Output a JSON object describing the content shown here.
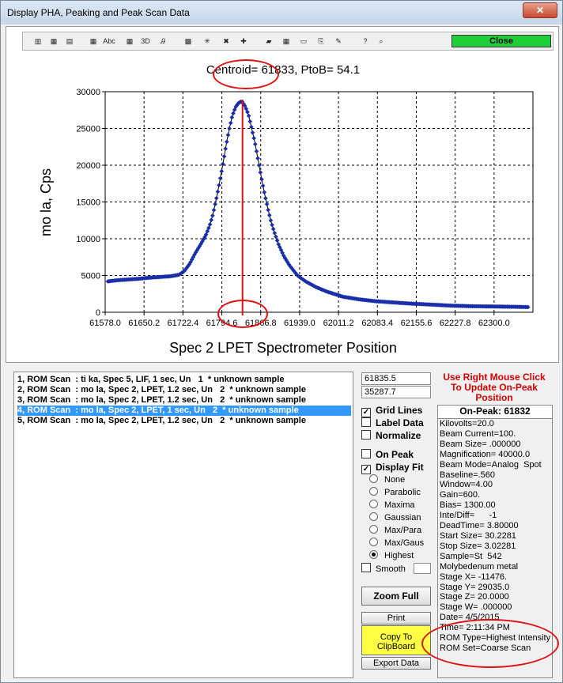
{
  "window": {
    "title": "Display PHA, Peaking and Peak Scan Data",
    "close_glyph": "✕"
  },
  "toolbar": {
    "icons": [
      "bar-chart-icon",
      "3d-bar-icon",
      "stacked-bar-icon",
      "table-icon",
      "abc-icon",
      "grid-icon",
      "3d-rotate-icon",
      "font-icon",
      "pattern-icon",
      "scatter-icon",
      "marker-icon",
      "crosshair-icon",
      "fill-icon",
      "dots-icon",
      "label-icon",
      "export-icon",
      "pencil-icon",
      "help-icon",
      "zoom-icon"
    ],
    "close_label": "Close"
  },
  "chart_data": {
    "type": "scatter",
    "title": "Centroid= 61833, PtoB= 54.1",
    "xlabel": "Spec  2 LPET Spectrometer Position",
    "ylabel": "mo la, Cps",
    "xlim": [
      61578.0,
      62372.2
    ],
    "ylim": [
      0,
      30000
    ],
    "xticks": [
      "61578.0",
      "61650.2",
      "61722.4",
      "61794.6",
      "61866.8",
      "61939.0",
      "62011.2",
      "62083.4",
      "62155.6",
      "62227.8",
      "62300.0"
    ],
    "yticks": [
      "0",
      "5000",
      "10000",
      "15000",
      "20000",
      "25000",
      "30000"
    ],
    "grid": true,
    "centroid_x": 61833,
    "series": [
      {
        "color": "#1a2ea8",
        "x": [
          61583,
          61600,
          61620,
          61640,
          61660,
          61680,
          61700,
          61715,
          61725,
          61735,
          61745,
          61755,
          61765,
          61772,
          61778,
          61784,
          61790,
          61796,
          61802,
          61808,
          61814,
          61820,
          61826,
          61832,
          61838,
          61844,
          61850,
          61856,
          61862,
          61868,
          61874,
          61880,
          61886,
          61892,
          61900,
          61910,
          61920,
          61935,
          61950,
          61970,
          61990,
          62020,
          62050,
          62080,
          62110,
          62140,
          62180,
          62220,
          62260,
          62300,
          62340,
          62365
        ],
        "y": [
          4200,
          4350,
          4450,
          4550,
          4700,
          4800,
          4900,
          5100,
          5600,
          6600,
          8000,
          9200,
          10500,
          11800,
          13300,
          15300,
          17500,
          19900,
          22500,
          24800,
          26700,
          27900,
          28500,
          28700,
          28000,
          26900,
          25000,
          23100,
          20700,
          18300,
          16100,
          14100,
          12300,
          10900,
          9200,
          7600,
          6400,
          5000,
          4200,
          3400,
          2800,
          2100,
          1750,
          1500,
          1350,
          1200,
          1050,
          900,
          820,
          780,
          740,
          700
        ]
      }
    ]
  },
  "list": {
    "items": [
      "1, ROM Scan  : ti ka, Spec 5, LIF, 1 sec, Un   1  * unknown sample",
      "2, ROM Scan  : mo la, Spec 2, LPET, 1.2 sec, Un   2  * unknown sample",
      "3, ROM Scan  : mo la, Spec 2, LPET, 1.2 sec, Un   2  * unknown sample",
      "4, ROM Scan  : mo la, Spec 2, LPET, 1 sec, Un   2  * unknown sample",
      "5, ROM Scan  : mo la, Spec 2, LPET, 1.2 sec, Un   2  * unknown sample"
    ],
    "selected_index": 3
  },
  "coords": {
    "x": "61835.5",
    "y": "35287.7"
  },
  "options": {
    "grid_lines": "Grid Lines",
    "label_data": "Label Data",
    "normalize": "Normalize",
    "on_peak": "On Peak",
    "display_fit": "Display Fit",
    "fits": [
      "None",
      "Parabolic",
      "Maxima",
      "Gaussian",
      "Max/Para",
      "Max/Gaus",
      "Highest"
    ],
    "selected_fit": "Highest",
    "smooth": "Smooth",
    "check_mark": "✓"
  },
  "buttons": {
    "zoom_full": "Zoom Full",
    "print": "Print",
    "copy": "Copy To ClipBoard",
    "export": "Export Data"
  },
  "hint": "Use Right Mouse Click To Update On-Peak Position",
  "info": {
    "header": "On-Peak: 61832",
    "lines": [
      "Kilovolts=20.0",
      "Beam Current=100.",
      "Beam Size= .000000",
      "Magnification= 40000.0",
      "Beam Mode=Analog  Spot",
      "Baseline=.560",
      "Window=4.00",
      "Gain=600.",
      "Bias= 1300.00",
      "Inte/Diff=      -1",
      "DeadTime= 3.80000",
      "Start Size= 30.2281",
      "Stop Size= 3.02281",
      "Sample=St  542",
      "Molybedenum metal",
      "Stage X= -11476.",
      "Stage Y= 29035.0",
      "Stage Z= 20.0000",
      "Stage W= .000000",
      "Date= 4/5/2015",
      "Time= 2:11:34 PM",
      "ROM Type=Highest Intensity",
      "ROM Set=Coarse Scan"
    ]
  }
}
